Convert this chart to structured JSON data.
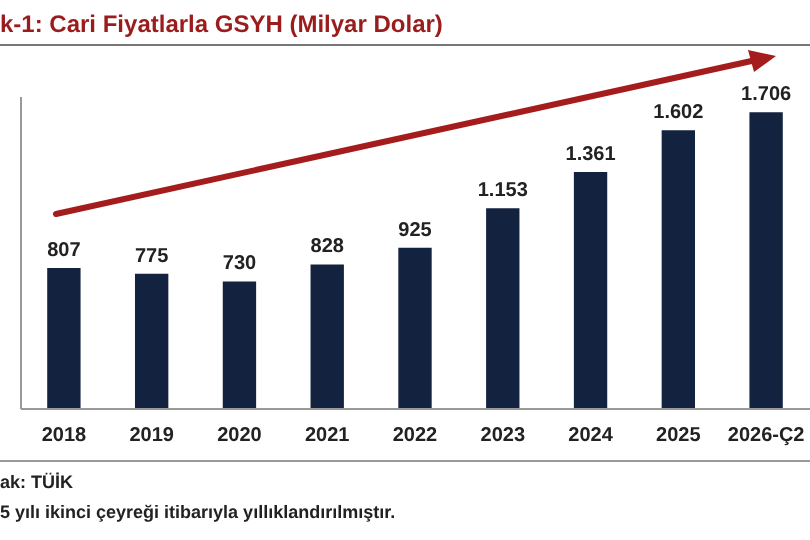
{
  "chart_data": {
    "type": "bar",
    "title": "k-1: Cari Fiyatlarla GSYH (Milyar Dolar)",
    "categories": [
      "2018",
      "2019",
      "2020",
      "2021",
      "2022",
      "2023",
      "2024",
      "2025",
      "2026-Ç2"
    ],
    "values": [
      807,
      775,
      730,
      828,
      925,
      1153,
      1361,
      1602,
      1706
    ],
    "value_labels": [
      "807",
      "775",
      "730",
      "828",
      "925",
      "1.153",
      "1.361",
      "1.602",
      "1.706"
    ],
    "color": "#13223f",
    "ylim": [
      0,
      1800
    ],
    "tick_labels": "x",
    "annotations": [
      "ak: TÜİK",
      "5 yılı ikinci çeyreği itibarıyla yıllıklandırılmıştır."
    ]
  }
}
